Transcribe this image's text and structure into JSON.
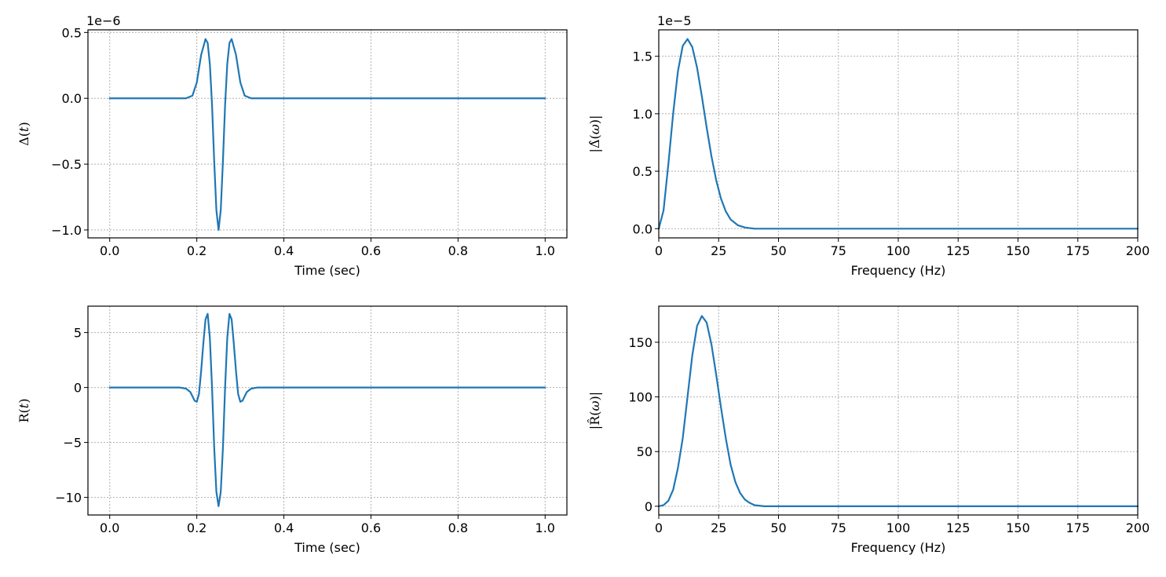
{
  "colors": {
    "series": "#1f77b4",
    "grid": "#b0b0b0",
    "axis": "#000000"
  },
  "chart_data": [
    {
      "type": "line",
      "xlabel": "Time (sec)",
      "ylabel": "Δ(t)",
      "ylabel_parts": [
        "Δ(",
        "t",
        ")"
      ],
      "offset_text": "1e−6",
      "scale": 1e-06,
      "xlim": [
        -0.05,
        1.05
      ],
      "ylim": [
        -1.06,
        0.52
      ],
      "xticks": [
        0.0,
        0.2,
        0.4,
        0.6,
        0.8,
        1.0
      ],
      "xtick_labels": [
        "0.0",
        "0.2",
        "0.4",
        "0.6",
        "0.8",
        "1.0"
      ],
      "yticks": [
        0.5,
        0.0,
        -0.5,
        -1.0
      ],
      "ytick_labels": [
        "0.5",
        "0.0",
        "−0.5",
        "−1.0"
      ],
      "grid": true,
      "series": [
        {
          "x": [
            0.0,
            0.1,
            0.15,
            0.175,
            0.19,
            0.2,
            0.21,
            0.22,
            0.225,
            0.23,
            0.235,
            0.24,
            0.245,
            0.25,
            0.255,
            0.26,
            0.265,
            0.27,
            0.275,
            0.28,
            0.29,
            0.3,
            0.31,
            0.325,
            0.35,
            0.4,
            0.6,
            0.8,
            1.0
          ],
          "y": [
            0.0,
            0.0,
            0.0,
            0.0,
            0.02,
            0.12,
            0.33,
            0.45,
            0.42,
            0.26,
            -0.05,
            -0.48,
            -0.85,
            -1.0,
            -0.85,
            -0.48,
            -0.05,
            0.26,
            0.42,
            0.45,
            0.33,
            0.12,
            0.02,
            0.0,
            0.0,
            0.0,
            0.0,
            0.0,
            0.0
          ]
        }
      ]
    },
    {
      "type": "line",
      "xlabel": "Frequency (Hz)",
      "ylabel": "|Δ̂(ω)|",
      "ylabel_parts": [
        "|Δ̂(",
        "ω",
        ")|"
      ],
      "offset_text": "1e−5",
      "scale": 1e-05,
      "xlim": [
        0,
        200
      ],
      "ylim": [
        -0.08,
        1.73
      ],
      "xticks": [
        0,
        25,
        50,
        75,
        100,
        125,
        150,
        175,
        200
      ],
      "xtick_labels": [
        "0",
        "25",
        "50",
        "75",
        "100",
        "125",
        "150",
        "175",
        "200"
      ],
      "yticks": [
        1.5,
        1.0,
        0.5,
        0.0
      ],
      "ytick_labels": [
        "1.5",
        "1.0",
        "0.5",
        "0.0"
      ],
      "grid": true,
      "series": [
        {
          "x": [
            0,
            2,
            4,
            6,
            8,
            10,
            12,
            14,
            16,
            18,
            20,
            22,
            24,
            26,
            28,
            30,
            33,
            36,
            40,
            45,
            50,
            100,
            150,
            200
          ],
          "y": [
            0.0,
            0.16,
            0.56,
            1.0,
            1.37,
            1.59,
            1.65,
            1.58,
            1.4,
            1.15,
            0.88,
            0.63,
            0.42,
            0.26,
            0.15,
            0.08,
            0.03,
            0.01,
            0.0,
            0.0,
            0.0,
            0.0,
            0.0,
            0.0
          ]
        }
      ]
    },
    {
      "type": "line",
      "xlabel": "Time (sec)",
      "ylabel": "R(t)",
      "ylabel_parts": [
        "R(",
        "t",
        ")"
      ],
      "offset_text": "",
      "scale": 1,
      "xlim": [
        -0.05,
        1.05
      ],
      "ylim": [
        -11.6,
        7.4
      ],
      "xticks": [
        0.0,
        0.2,
        0.4,
        0.6,
        0.8,
        1.0
      ],
      "xtick_labels": [
        "0.0",
        "0.2",
        "0.4",
        "0.6",
        "0.8",
        "1.0"
      ],
      "yticks": [
        5,
        0,
        -5,
        -10
      ],
      "ytick_labels": [
        "5",
        "0",
        "−5",
        "−10"
      ],
      "grid": true,
      "series": [
        {
          "x": [
            0.0,
            0.1,
            0.16,
            0.175,
            0.185,
            0.19,
            0.195,
            0.2,
            0.205,
            0.21,
            0.215,
            0.22,
            0.225,
            0.23,
            0.235,
            0.24,
            0.245,
            0.25,
            0.255,
            0.26,
            0.265,
            0.27,
            0.275,
            0.28,
            0.285,
            0.29,
            0.295,
            0.3,
            0.305,
            0.31,
            0.315,
            0.325,
            0.34,
            0.4,
            0.6,
            0.8,
            1.0
          ],
          "y": [
            0.0,
            0.0,
            0.0,
            -0.1,
            -0.4,
            -0.8,
            -1.2,
            -1.3,
            -0.6,
            1.5,
            4.0,
            6.2,
            6.7,
            4.5,
            0.0,
            -5.5,
            -9.5,
            -10.8,
            -9.5,
            -5.5,
            0.0,
            4.5,
            6.7,
            6.2,
            4.0,
            1.5,
            -0.6,
            -1.3,
            -1.2,
            -0.8,
            -0.4,
            -0.1,
            0.0,
            0.0,
            0.0,
            0.0,
            0.0
          ]
        }
      ]
    },
    {
      "type": "line",
      "xlabel": "Frequency (Hz)",
      "ylabel": "|R̂(ω)|",
      "ylabel_parts": [
        "|R̂(",
        "ω",
        ")|"
      ],
      "offset_text": "",
      "scale": 1,
      "xlim": [
        0,
        200
      ],
      "ylim": [
        -8,
        183
      ],
      "xticks": [
        0,
        25,
        50,
        75,
        100,
        125,
        150,
        175,
        200
      ],
      "xtick_labels": [
        "0",
        "25",
        "50",
        "75",
        "100",
        "125",
        "150",
        "175",
        "200"
      ],
      "yticks": [
        150,
        100,
        50,
        0
      ],
      "ytick_labels": [
        "150",
        "100",
        "50",
        "0"
      ],
      "grid": true,
      "series": [
        {
          "x": [
            0,
            2,
            4,
            6,
            8,
            10,
            12,
            14,
            16,
            18,
            20,
            22,
            24,
            26,
            28,
            30,
            32,
            34,
            36,
            38,
            40,
            44,
            48,
            55,
            75,
            100,
            150,
            200
          ],
          "y": [
            0,
            1,
            5,
            15,
            35,
            62,
            100,
            138,
            165,
            174,
            168,
            148,
            120,
            90,
            62,
            38,
            22,
            12,
            6,
            3,
            1,
            0,
            0,
            0,
            0,
            0,
            0,
            0
          ]
        }
      ]
    }
  ]
}
